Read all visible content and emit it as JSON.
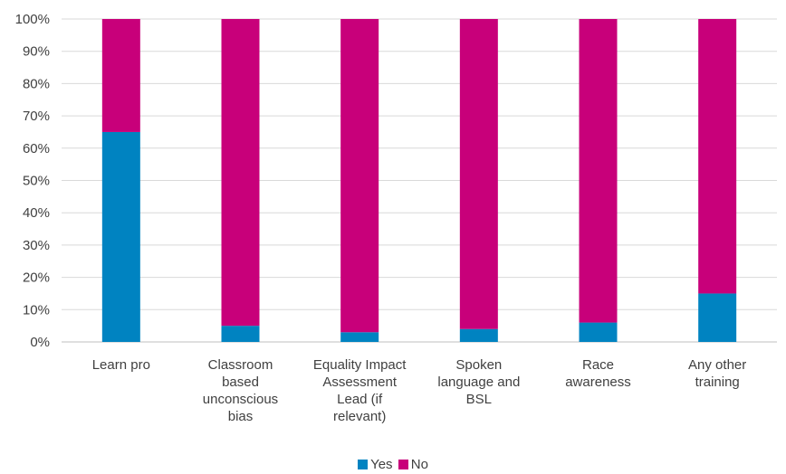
{
  "chart_data": {
    "type": "bar",
    "stacked": true,
    "categories": [
      [
        "Learn pro"
      ],
      [
        "Classroom",
        "based",
        "unconscious",
        "bias"
      ],
      [
        "Equality Impact",
        "Assessment",
        "Lead (if",
        "relevant)"
      ],
      [
        "Spoken",
        "language and",
        "BSL"
      ],
      [
        "Race",
        "awareness"
      ],
      [
        "Any other",
        "training"
      ]
    ],
    "series": [
      {
        "name": "Yes",
        "color": "#0083C1",
        "values": [
          65,
          5,
          3,
          4,
          6,
          15
        ]
      },
      {
        "name": "No",
        "color": "#C8007A",
        "values": [
          35,
          95,
          97,
          96,
          94,
          85
        ]
      }
    ],
    "y_ticks": [
      "0%",
      "10%",
      "20%",
      "30%",
      "40%",
      "50%",
      "60%",
      "70%",
      "80%",
      "90%",
      "100%"
    ],
    "ylim": [
      0,
      100
    ],
    "grid": true,
    "legend_position": "bottom"
  }
}
